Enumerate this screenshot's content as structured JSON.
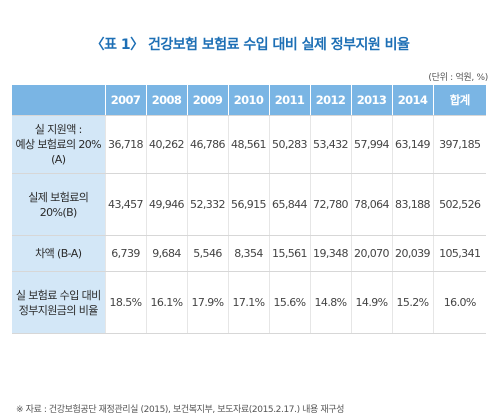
{
  "title": "〈표 1〉 건강보험 보험료 수입 대비 실제 정부지원 비율",
  "unit": "(단위 : 억원, %)",
  "table": {
    "headers": [
      "2007",
      "2008",
      "2009",
      "2010",
      "2011",
      "2012",
      "2013",
      "2014",
      "합계"
    ],
    "rows": [
      {
        "label_lines": [
          "실 지원액 :",
          "예상 보험료의 20%(A)"
        ],
        "values": [
          "36,718",
          "40,262",
          "46,786",
          "48,561",
          "50,283",
          "53,432",
          "57,994",
          "63,149",
          "397,185"
        ]
      },
      {
        "label_lines": [
          "실제 보험료의",
          "20%(B)"
        ],
        "values": [
          "43,457",
          "49,946",
          "52,332",
          "56,915",
          "65,844",
          "72,780",
          "78,064",
          "83,188",
          "502,526"
        ]
      },
      {
        "label_lines": [
          "차액 (B-A)"
        ],
        "values": [
          "6,739",
          "9,684",
          "5,546",
          "8,354",
          "15,561",
          "19,348",
          "20,070",
          "20,039",
          "105,341"
        ]
      },
      {
        "label_lines": [
          "실 보험료 수입 대비",
          "정부지원금의 비율"
        ],
        "values": [
          "18.5%",
          "16.1%",
          "17.9%",
          "17.1%",
          "15.6%",
          "14.8%",
          "14.9%",
          "15.2%",
          "16.0%"
        ]
      }
    ]
  },
  "source": "※ 자료 : 건강보험공단 재정관리실 (2015), 보건복지부, 보도자료(2015.2.17.) 내용 재구성",
  "colors": {
    "title": "#1d6fb5",
    "header_bg": "#7ab5e4",
    "row_label_bg": "#d3e7f7"
  }
}
